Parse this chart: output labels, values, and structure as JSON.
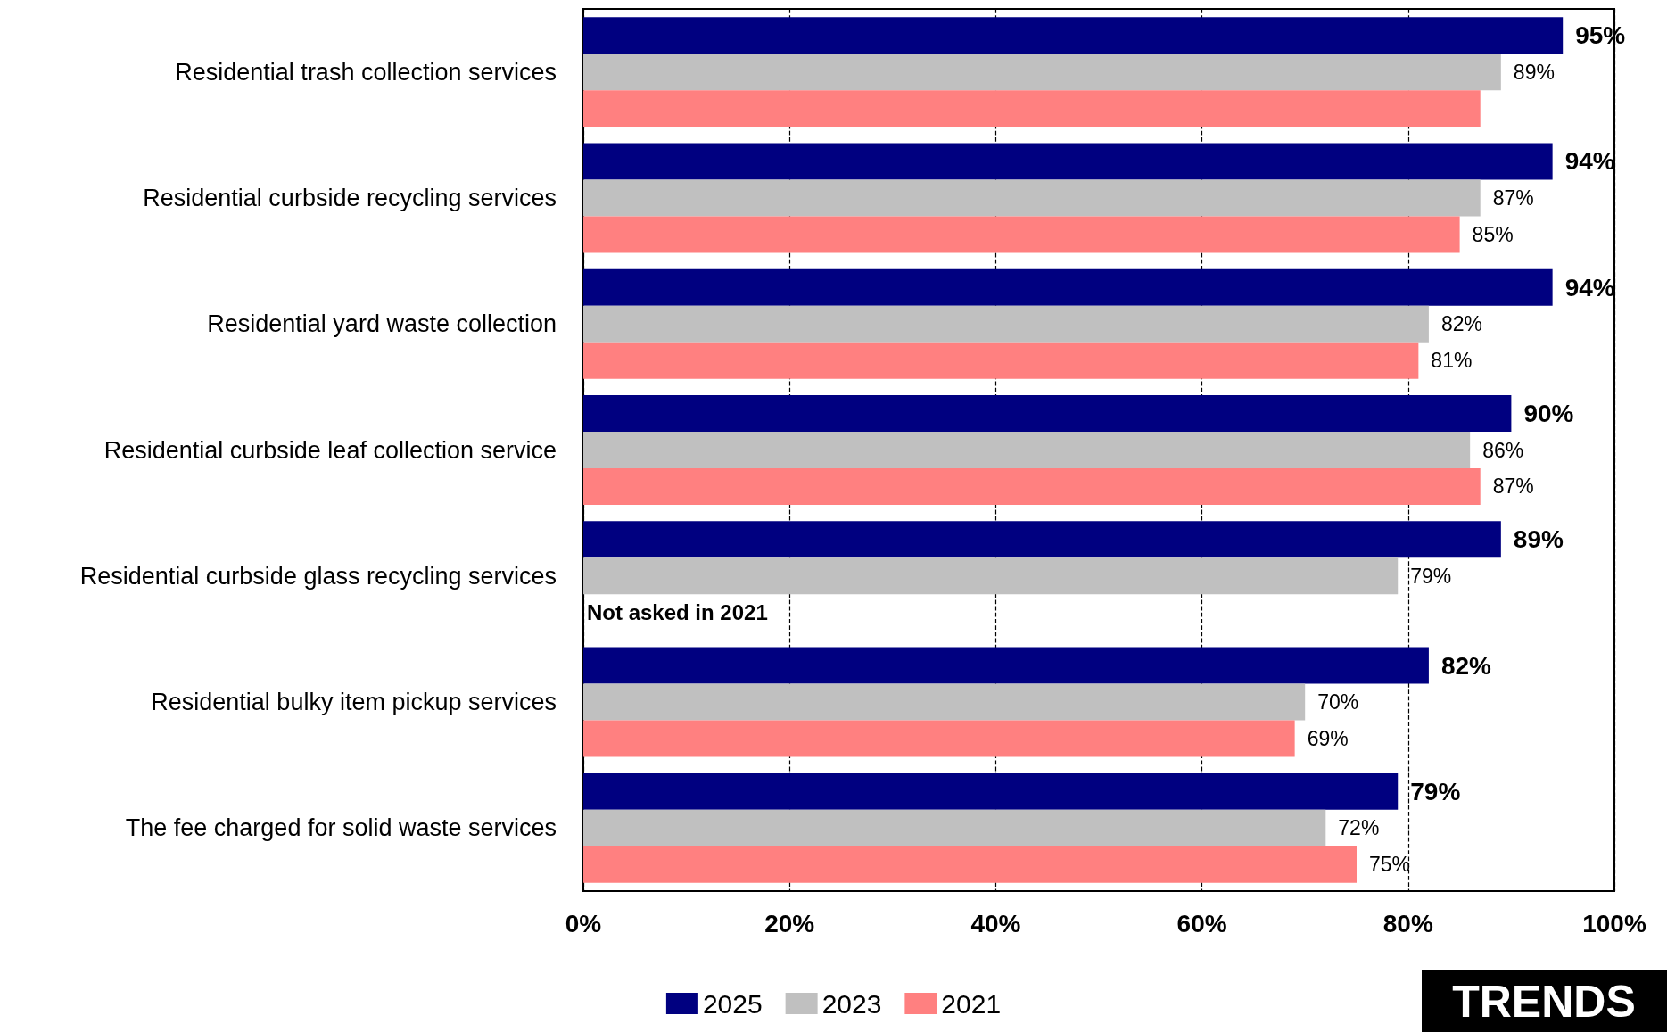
{
  "chart_data": {
    "type": "bar",
    "orientation": "horizontal",
    "categories": [
      "Residential trash collection services",
      "Residential curbside recycling services",
      "Residential yard waste collection",
      "Residential curbside leaf collection service",
      "Residential curbside glass recycling services",
      "Residential bulky item pickup services",
      "The fee charged for solid waste services"
    ],
    "series": [
      {
        "name": "2025",
        "color": "#000080",
        "values": [
          95,
          94,
          94,
          90,
          89,
          82,
          79
        ],
        "value_labels": [
          "95%",
          "94%",
          "94%",
          "90%",
          "89%",
          "82%",
          "79%"
        ]
      },
      {
        "name": "2023",
        "color": "#c0c0c0",
        "values": [
          89,
          87,
          82,
          86,
          79,
          70,
          72
        ],
        "value_labels": [
          "89%",
          "87%",
          "82%",
          "86%",
          "79%",
          "70%",
          "72%"
        ]
      },
      {
        "name": "2021",
        "color": "#ff8080",
        "values": [
          87,
          85,
          81,
          87,
          null,
          69,
          75
        ],
        "value_labels": [
          null,
          "85%",
          "81%",
          "87%",
          null,
          "69%",
          "75%"
        ]
      }
    ],
    "xlim": [
      0,
      100
    ],
    "xticks": [
      {
        "value": 0,
        "label": "0%"
      },
      {
        "value": 20,
        "label": "20%"
      },
      {
        "value": 40,
        "label": "40%"
      },
      {
        "value": 60,
        "label": "60%"
      },
      {
        "value": 80,
        "label": "80%"
      },
      {
        "value": 100,
        "label": "100%"
      }
    ],
    "grid": "x",
    "legend": "bottom",
    "annotations": [
      {
        "text": "Not asked in 2021",
        "x": 0,
        "y": "Residential curbside glass recycling services"
      },
      "TRENDS"
    ]
  }
}
